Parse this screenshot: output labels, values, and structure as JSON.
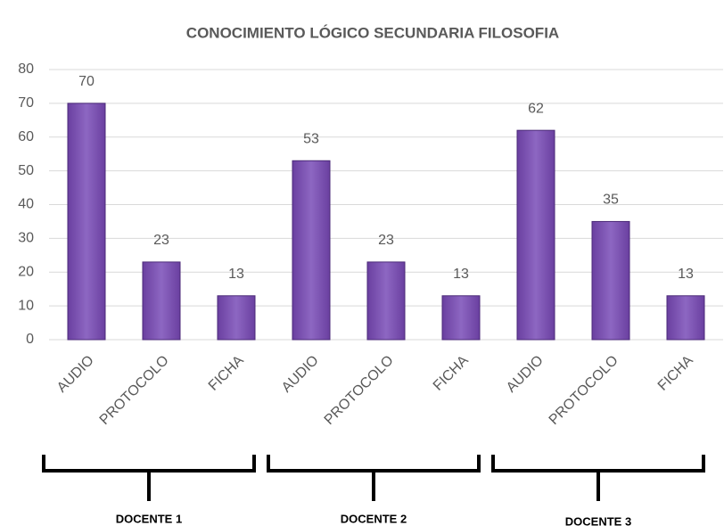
{
  "chart_data": {
    "type": "bar",
    "title": "CONOCIMIENTO LÓGICO SECUNDARIA FILOSOFIA",
    "categories": [
      "AUDIO",
      "PROTOCOLO",
      "FICHA",
      "AUDIO",
      "PROTOCOLO",
      "FICHA",
      "AUDIO",
      "PROTOCOLO",
      "FICHA"
    ],
    "values": [
      70,
      23,
      13,
      53,
      23,
      13,
      62,
      35,
      13
    ],
    "color": "#7b52b0",
    "ylim": [
      0,
      80
    ],
    "yticks": [
      0,
      10,
      20,
      30,
      40,
      50,
      60,
      70,
      80
    ],
    "grid": true,
    "groups": [
      "DOCENTE 1",
      "DOCENTE 2",
      "DOCENTE 3"
    ]
  }
}
